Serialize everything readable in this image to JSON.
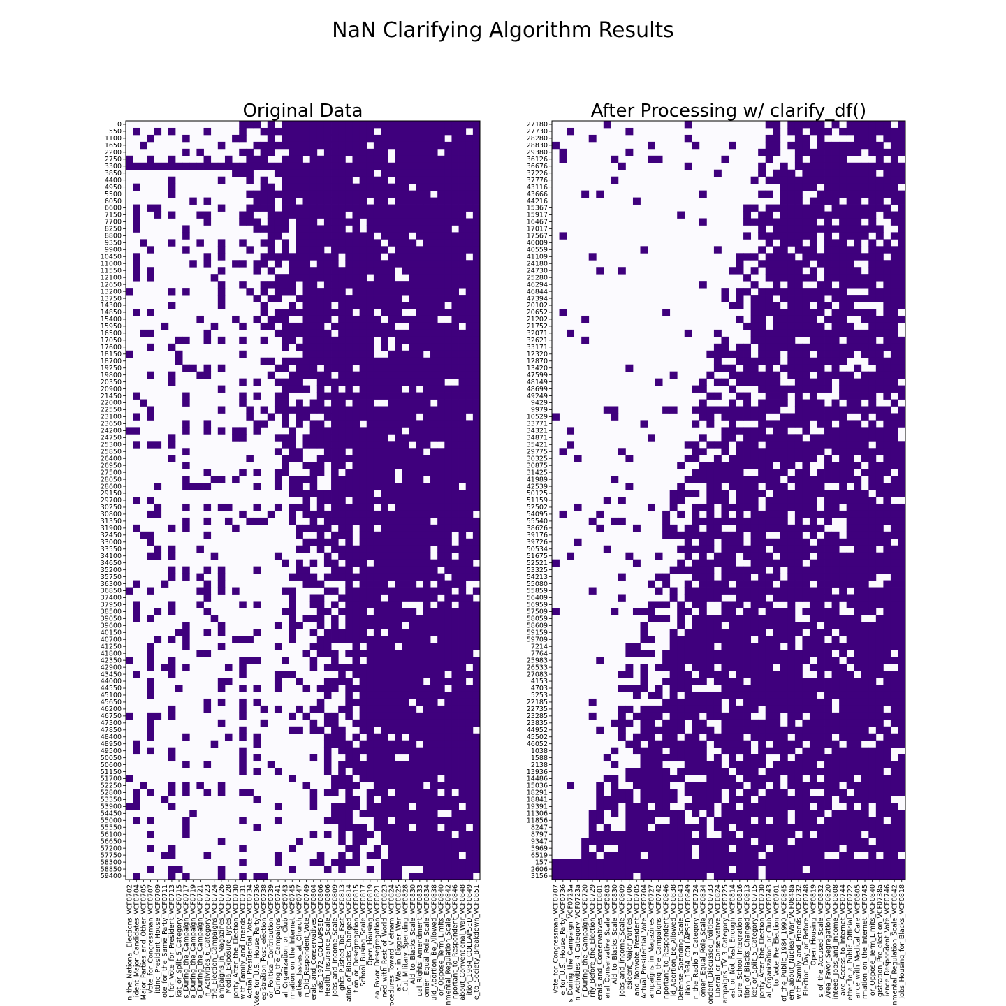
{
  "figure": {
    "title": "NaN Clarifying Algorithm Results"
  },
  "colors": {
    "missing": "#fbfafe",
    "present": "#3f007d"
  },
  "chart_data": [
    {
      "type": "heatmap",
      "title": "Original Data",
      "colormap": "Purples",
      "ylabels": [
        "0",
        "550",
        "1100",
        "1650",
        "2200",
        "2750",
        "3300",
        "3850",
        "4400",
        "4950",
        "5500",
        "6050",
        "6600",
        "7150",
        "7700",
        "8250",
        "8800",
        "9350",
        "9900",
        "10450",
        "11000",
        "11550",
        "12100",
        "12650",
        "13200",
        "13750",
        "14300",
        "14850",
        "15400",
        "15950",
        "16500",
        "17050",
        "17600",
        "18150",
        "18700",
        "19250",
        "19800",
        "20350",
        "20900",
        "21450",
        "22000",
        "22550",
        "23100",
        "23650",
        "24200",
        "24750",
        "25300",
        "25850",
        "26400",
        "26950",
        "27500",
        "28050",
        "28600",
        "29150",
        "29700",
        "30250",
        "30800",
        "31350",
        "31900",
        "32450",
        "33000",
        "33550",
        "34100",
        "34650",
        "35200",
        "35750",
        "36300",
        "36850",
        "37400",
        "37950",
        "38500",
        "39050",
        "39600",
        "40150",
        "40700",
        "41250",
        "41800",
        "42350",
        "42900",
        "43450",
        "44000",
        "44550",
        "45100",
        "45650",
        "46200",
        "46750",
        "47300",
        "47850",
        "48400",
        "48950",
        "49500",
        "50050",
        "50600",
        "51150",
        "51700",
        "52250",
        "52800",
        "53350",
        "53900",
        "54450",
        "55000",
        "55550",
        "56100",
        "56650",
        "57200",
        "57750",
        "58300",
        "58850",
        "59400"
      ],
      "xlabels": [
        "n_the_National_Elections_VCF0702",
        "ident_Major_Candidates_VCF0704",
        "Major_Parties_and_Other_VCF0705",
        "Vote_for_Congressman_VCF0707",
        "itting_President_House_VCF0709",
        "ote_for_the_Same_Party_VCF0711",
        "t_for_Vote_for_President_VCF0713",
        "ket_or_Split_5_Category_VCF0715",
        "s_During_the_Campaign_VCF0717",
        "e_During_the_Campaign_VCF0719",
        "e_During_the_Campaign_VCF0721",
        "n_Activities_6_Category_VCF0723",
        "the_Election_Campaigns_VCF0724",
        "ampaigns_in_Magazines_VCF0726",
        "Media_Exposure_Types_VCF0728",
        "jority_After_the_Election_VCF0730",
        "with_Family_and_Friends_VCF0731",
        "Actual_Presidential_Vote_VCF0734",
        "Vote_for_U.S._House_Party_VCF0736",
        "egistration_Post_election_VCF0738",
        "or_Political_Contribution_VCF0739",
        "During_the_Campaigns_VCF0741",
        "al_Organization_or_Club_VCF0743",
        "rmation_on_the_Internet_VCF0745",
        "arties_Issues_at_Church_VCF0747",
        "n_Did_Respondent_Vote_VCF0749",
        "erals_and_Conservatives_VCF0804",
        "rals_1972_COLLAPSED_VCF0806",
        "Health_Insurance_Scale_VCF0806",
        "Jobs_and_Income_Scale_VCF0809",
        "ghts_Pushed_Too_Fast_VCF0813",
        "ation_of_Blacks_Changed_VCF0814",
        "tion_or_Desegregation_VCF0815",
        "School_Busing_Scale_VCF0817",
        "Open_Housing_VCF0819",
        "ea_Favor_Desegregation_VCF0821",
        "ned_with_Rest_of_World_VCF0823",
        "Procedures_Toward_Vietnam_VCF0824",
        "at_War_in_Bigger_War_VCF0825",
        "_Cut_Military_Spending_VCF0828",
        "Aid_to_Blacks_Scale_VCF0830",
        "ual_Rights_Amendment_VCF0833",
        "omen_Equal_Role_Scale_VCF0834",
        "uld_Abortion_Be_Allowed_VCF0838",
        "or_Oppose_Term_Limits_VCF0840",
        "nmental_Regulation_Scale_VCF0842",
        "nportant_to_Respondent_VCF0846",
        "about_Conventional_War_VCF0848",
        "ition_1984_COLLAPSED_VCF0849",
        "e_to_Society_Breakdown_VCF0851"
      ]
    },
    {
      "type": "heatmap",
      "title": "After Processing w/ clarify_df()",
      "colormap": "Purples",
      "ylabels": [
        "27180",
        "27730",
        "28280",
        "28830",
        "29380",
        "36126",
        "36676",
        "37226",
        "37776",
        "43116",
        "43666",
        "44216",
        "15367",
        "15917",
        "16467",
        "17017",
        "17567",
        "40009",
        "40559",
        "41109",
        "24180",
        "24730",
        "25280",
        "46294",
        "46844",
        "47394",
        "20102",
        "20652",
        "21202",
        "21752",
        "32071",
        "32621",
        "33171",
        "12320",
        "12870",
        "13420",
        "47599",
        "48149",
        "48699",
        "49249",
        "9429",
        "9979",
        "10529",
        "33771",
        "34321",
        "34871",
        "35421",
        "29775",
        "30325",
        "30875",
        "31425",
        "41989",
        "42539",
        "50125",
        "51159",
        "52502",
        "54095",
        "55540",
        "38626",
        "39176",
        "39726",
        "50534",
        "51675",
        "52521",
        "53325",
        "54213",
        "55080",
        "55859",
        "56409",
        "56959",
        "57509",
        "58059",
        "58609",
        "59159",
        "59709",
        "7214",
        "7764",
        "25983",
        "26533",
        "27083",
        "4153",
        "4703",
        "5253",
        "22185",
        "22735",
        "23285",
        "23835",
        "44952",
        "45502",
        "46052",
        "1038",
        "1588",
        "2138",
        "13936",
        "14486",
        "15036",
        "18291",
        "18841",
        "19391",
        "11306",
        "11856",
        "8247",
        "8797",
        "9347",
        "5969",
        "6519",
        "157",
        "2606",
        "3156"
      ],
      "xlabels": [
        "Vote_for_Congressman_VCF0707",
        "e_for_U.S._House_Party_VCF0736",
        "s_During_the_Campaign_VCF0723a",
        "n_Activities_4_Category_VCF0723a",
        "r_During_the_Campaign_VCF0720",
        "rify_Before_the_Election_VCF0729",
        "erals_and_Conservatives_VCF0801",
        "eral_Conservative_Scale_VCF0803",
        "Aid_to_Blacks_Scale_VCF0830",
        "Jobs_and_Income_Scale_VCF0809",
        "esident_Major_Parties_VCF0706",
        "and_Nonvote_President_VCF0705",
        "Actual_Presidential_Vote_VCF0704",
        "ampaigns_in_Magazines_VCF0727",
        "During_the_Campaigns_VCF0742",
        "nportant_to_Respondent_VCF0846",
        "ld_Abortion_Be_Allowed_VCF0838",
        "Defense_Spending_Scale_VCF0843",
        "ition_1984_COLLAPSED_VCF0849",
        "n_the_Radio_3_Category_VCF0724",
        "omen_Equal_Role_Scale_VCF0834",
        "ondent_Discussed_Politics_VCF0733",
        "Liberal_or_Conservative_VCF0824",
        "ampaigns_TV_3_Category_VCF0725",
        "ast_or_Not_Fast_Enough_VCF0814",
        "sure_School_Integration_VCF0816",
        "tion_of_Blacks_Changed_VCF0813",
        "ket_or_Split_5_Category_VCF0715",
        "jority_After_the_Election_VCF0730",
        "al_Organization_or_Club_VCF0743",
        "to_Vote_Pre_Election_VCF0701",
        "of_the_Public_1984_1990_VCF0845",
        "ern_about_Nuclear_War_VCF0848a",
        "with_Family_and_Friends_VCF0732",
        "Election_Day_or_Before_VCF0748",
        "Open_Housing_VCF0819",
        "s_of_the_Accused_Scale_VCF0832",
        "Area_Favor_Segregation_VCF0820",
        "inteed_Jobs_and_Income_VCF0808",
        "ave_Access_to_Internet_VCF0744",
        "etter_to_a_Public_Official_VCF0722",
        "ance_with_Medical_Care_VCF0805",
        "rmation_on_the_Internet_VCF0745",
        "or_Oppose_Term_Limits_VCF0840",
        "gistration_Pre_election_VCF0738a",
        "ience_Respondent_Vote_VCF0746",
        "nmental_Regulation_Scale_VCF0842",
        "Jobs_Housing_for_Blacks_VCF0818"
      ]
    }
  ]
}
